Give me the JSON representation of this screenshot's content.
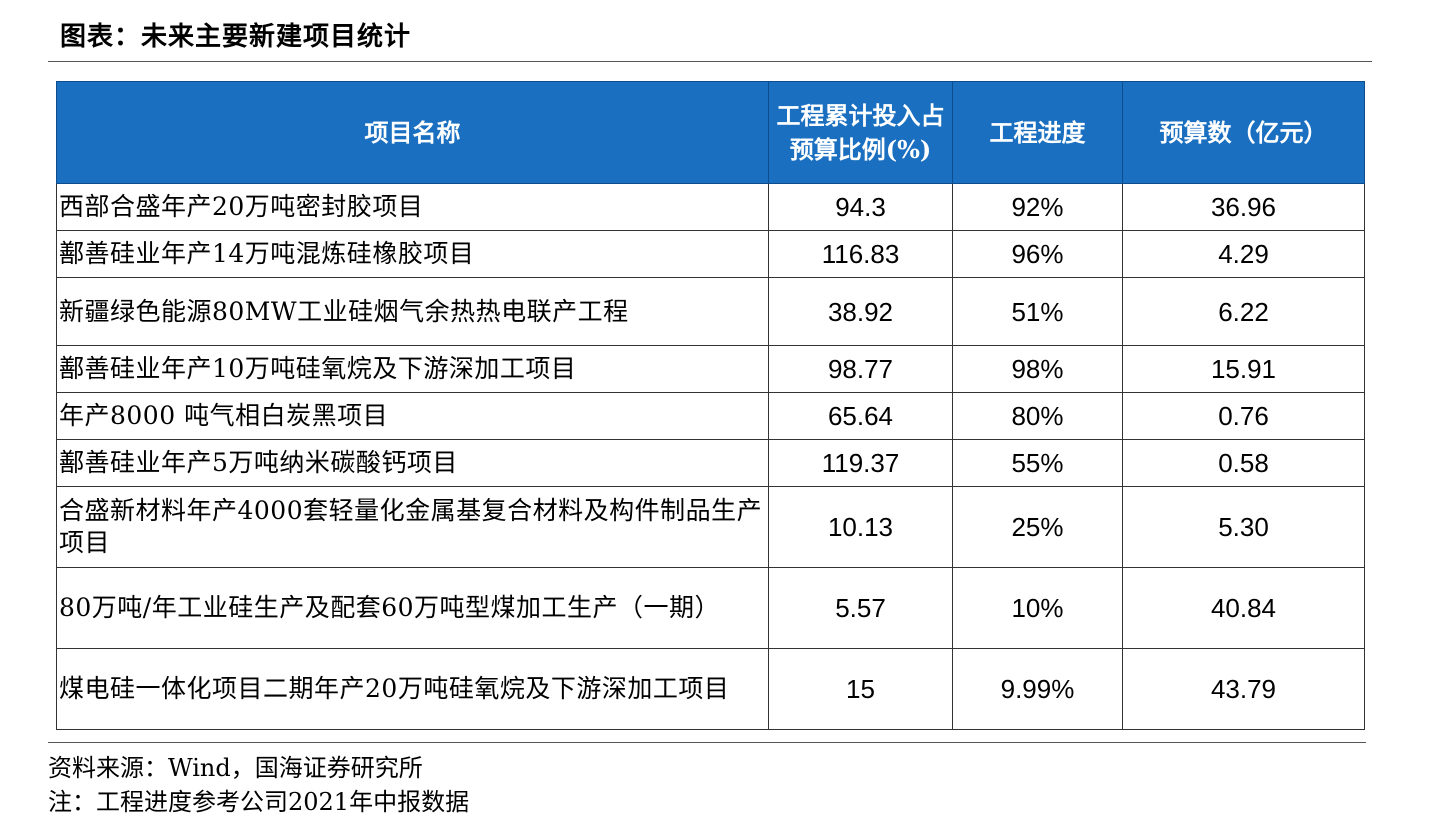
{
  "title": "图表：未来主要新建项目统计",
  "table": {
    "headers": {
      "name": "项目名称",
      "ratio": "工程累计投入占预算比例(%)",
      "progress": "工程进度",
      "budget": "预算数（亿元）"
    },
    "rows": [
      {
        "name": "西部合盛年产20万吨密封胶项目",
        "ratio": "94.3",
        "progress": "92%",
        "budget": "36.96"
      },
      {
        "name": "鄯善硅业年产14万吨混炼硅橡胶项目",
        "ratio": "116.83",
        "progress": "96%",
        "budget": "4.29"
      },
      {
        "name": "新疆绿色能源80MW工业硅烟气余热热电联产工程",
        "ratio": "38.92",
        "progress": "51%",
        "budget": "6.22"
      },
      {
        "name": "鄯善硅业年产10万吨硅氧烷及下游深加工项目",
        "ratio": "98.77",
        "progress": "98%",
        "budget": "15.91"
      },
      {
        "name": "年产8000 吨气相白炭黑项目",
        "ratio": "65.64",
        "progress": "80%",
        "budget": "0.76"
      },
      {
        "name": "鄯善硅业年产5万吨纳米碳酸钙项目",
        "ratio": "119.37",
        "progress": "55%",
        "budget": "0.58"
      },
      {
        "name": "合盛新材料年产4000套轻量化金属基复合材料及构件制品生产项目",
        "ratio": "10.13",
        "progress": "25%",
        "budget": "5.30"
      },
      {
        "name": "80万吨/年工业硅生产及配套60万吨型煤加工生产（一期）",
        "ratio": "5.57",
        "progress": "10%",
        "budget": "40.84"
      },
      {
        "name": "煤电硅一体化项目二期年产20万吨硅氧烷及下游深加工项目",
        "ratio": "15",
        "progress": "9.99%",
        "budget": "43.79"
      }
    ]
  },
  "source": "资料来源：Wind，国海证券研究所",
  "note": "注：工程进度参考公司2021年中报数据",
  "colors": {
    "header_bg": "#1a6fc0",
    "header_text": "#ffffff"
  }
}
